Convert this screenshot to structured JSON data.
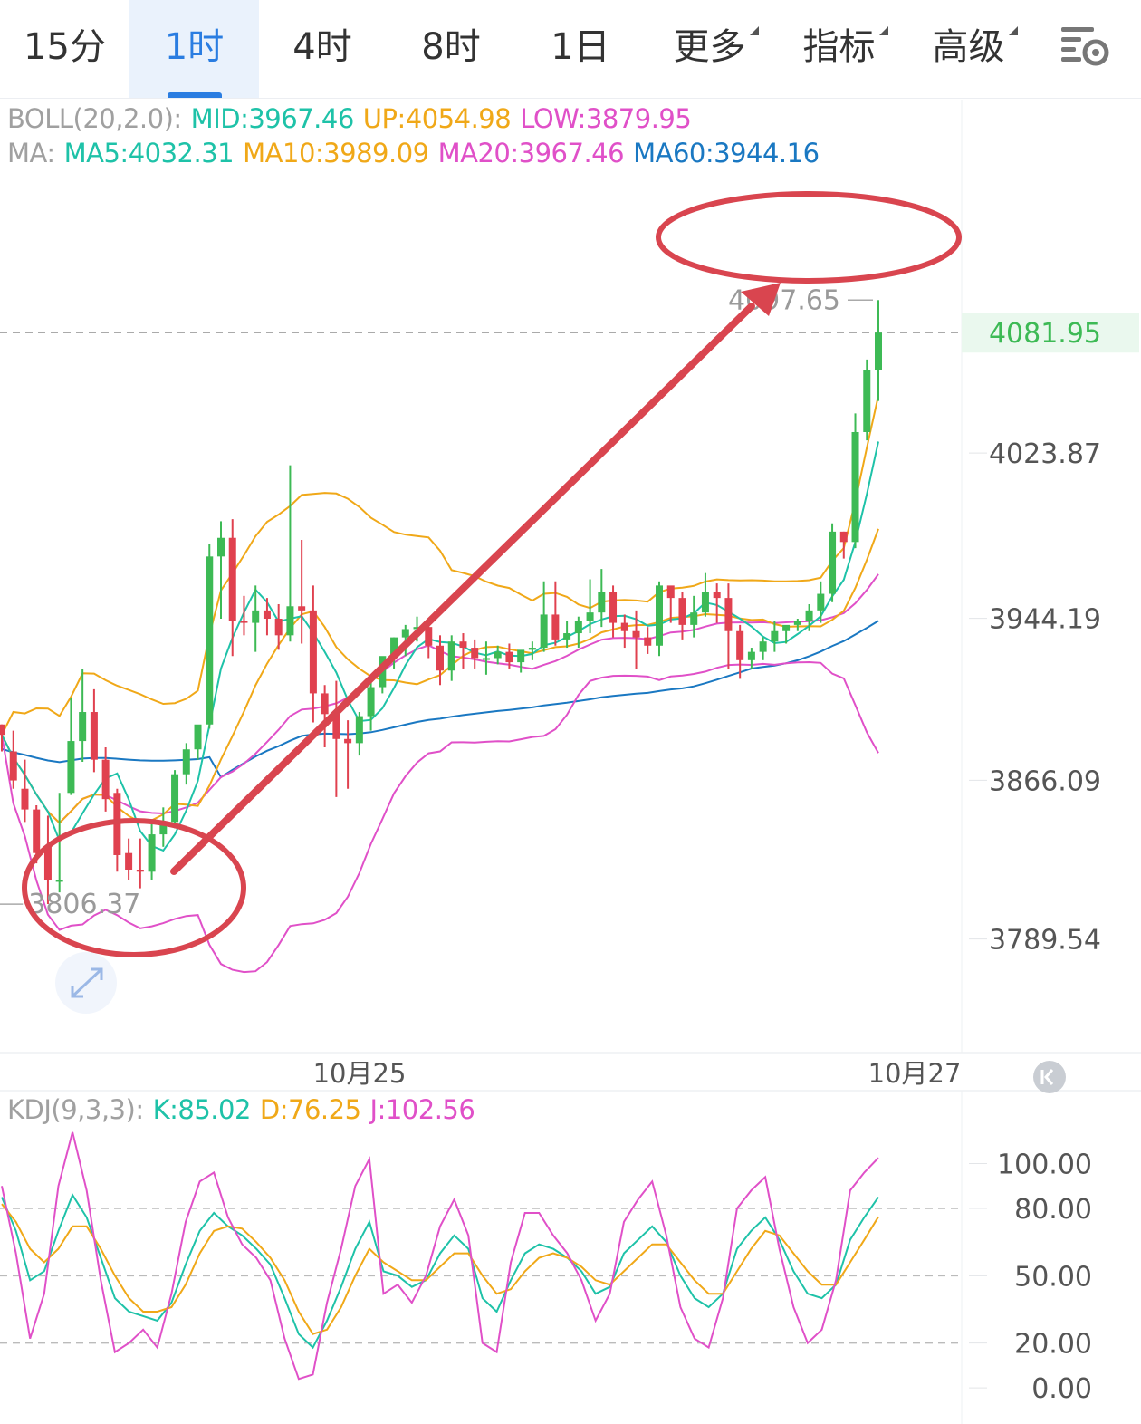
{
  "tabs": [
    {
      "label": "15分",
      "active": false,
      "dropdown": false
    },
    {
      "label": "1时",
      "active": true,
      "dropdown": false
    },
    {
      "label": "4时",
      "active": false,
      "dropdown": false
    },
    {
      "label": "8时",
      "active": false,
      "dropdown": false
    },
    {
      "label": "1日",
      "active": false,
      "dropdown": false
    },
    {
      "label": "更多",
      "active": false,
      "dropdown": true
    },
    {
      "label": "指标",
      "active": false,
      "dropdown": true
    },
    {
      "label": "高级",
      "active": false,
      "dropdown": true
    }
  ],
  "settings_icon": "chart-settings-icon",
  "boll_legend": {
    "label": "BOLL(20,2.0):",
    "mid": "MID:3967.46",
    "up": "UP:4054.98",
    "low": "LOW:3879.95"
  },
  "ma_legend": {
    "label": "MA:",
    "ma5": "MA5:4032.31",
    "ma10": "MA10:3989.09",
    "ma20": "MA20:3967.46",
    "ma60": "MA60:3944.16"
  },
  "kdj_legend": {
    "label": "KDJ(9,3,3):",
    "k": "K:85.02",
    "d": "D:76.25",
    "j": "J:102.56"
  },
  "colors": {
    "up": "#3dba55",
    "down": "#e0414f",
    "ma5": "#1ec2a8",
    "ma10": "#f0a818",
    "boll": "#e050c8",
    "ma60": "#1a78c2",
    "annotation": "#d9454f",
    "accent": "#2a7de1"
  },
  "chart_data": [
    {
      "type": "candlestick",
      "title": "",
      "y_ticks": [
        "4023.87",
        "3944.19",
        "3866.09",
        "3789.54"
      ],
      "y_tick_values": [
        4023.87,
        3944.19,
        3866.09,
        3789.54
      ],
      "x_ticks": [
        "10月25",
        "10月27"
      ],
      "last_price": "4081.95",
      "last_price_value": 4081.95,
      "max_label": "4097.65",
      "max_value": 4097.65,
      "min_label": "3806.37",
      "min_value": 3806.37,
      "ylim": [
        3740,
        4155
      ],
      "candles": [
        [
          3893,
          3893,
          3888,
          3880
        ],
        [
          3880,
          3890,
          3866,
          3862
        ],
        [
          3862,
          3876,
          3852,
          3846
        ],
        [
          3852,
          3854,
          3831,
          3826
        ],
        [
          3834,
          3849,
          3818,
          3806.4
        ],
        [
          3818,
          3860,
          3818,
          3812
        ],
        [
          3860,
          3906,
          3885,
          3859
        ],
        [
          3885,
          3920,
          3899,
          3875
        ],
        [
          3899,
          3910,
          3876,
          3870
        ],
        [
          3876,
          3882,
          3857,
          3851
        ],
        [
          3860,
          3862,
          3830,
          3822
        ],
        [
          3831,
          3838,
          3823,
          3818
        ],
        [
          3823,
          3838,
          3822,
          3814
        ],
        [
          3822,
          3845,
          3840,
          3818
        ],
        [
          3840,
          3853,
          3846,
          3834
        ],
        [
          3846,
          3871,
          3869,
          3843
        ],
        [
          3869,
          3884,
          3881,
          3864
        ],
        [
          3881,
          3886,
          3893,
          3876
        ],
        [
          3893,
          3980,
          3974,
          3891
        ],
        [
          3974,
          3991,
          3983,
          3944
        ],
        [
          3983,
          3992,
          3943,
          3926
        ],
        [
          3943,
          3955,
          3942,
          3936
        ],
        [
          3942,
          3960,
          3948,
          3928
        ],
        [
          3948,
          3954,
          3944,
          3936
        ],
        [
          3944,
          3951,
          3936,
          3929
        ],
        [
          3936,
          4018,
          3950,
          3933
        ],
        [
          3950,
          3982,
          3948,
          3932
        ],
        [
          3948,
          3960,
          3908,
          3894
        ],
        [
          3908,
          3912,
          3898,
          3882
        ],
        [
          3898,
          3914,
          3886,
          3858
        ],
        [
          3886,
          3895,
          3884,
          3862
        ],
        [
          3884,
          3899,
          3897,
          3878
        ],
        [
          3897,
          3916,
          3911,
          3890
        ],
        [
          3911,
          3924,
          3926,
          3908
        ],
        [
          3926,
          3935,
          3935,
          3920
        ],
        [
          3935,
          3941,
          3939,
          3926
        ],
        [
          3939,
          3945,
          3940,
          3933
        ],
        [
          3940,
          3942,
          3931,
          3925
        ],
        [
          3931,
          3936,
          3919,
          3912
        ],
        [
          3919,
          3936,
          3933,
          3914
        ],
        [
          3933,
          3937,
          3930,
          3920
        ],
        [
          3930,
          3934,
          3925,
          3920
        ],
        [
          3925,
          3933,
          3925,
          3917
        ],
        [
          3925,
          3931,
          3928,
          3922
        ],
        [
          3928,
          3932,
          3923,
          3920
        ],
        [
          3923,
          3928,
          3929,
          3918
        ],
        [
          3929,
          3933,
          3930,
          3924
        ],
        [
          3930,
          3962,
          3946,
          3928
        ],
        [
          3946,
          3962,
          3934,
          3931
        ],
        [
          3934,
          3943,
          3937,
          3930
        ],
        [
          3937,
          3945,
          3943,
          3930
        ],
        [
          3943,
          3963,
          3947,
          3937
        ],
        [
          3947,
          3968,
          3957,
          3940
        ],
        [
          3957,
          3960,
          3942,
          3935
        ],
        [
          3942,
          3946,
          3938,
          3930
        ],
        [
          3938,
          3948,
          3935,
          3920
        ],
        [
          3935,
          3940,
          3931,
          3927
        ],
        [
          3931,
          3962,
          3960,
          3926
        ],
        [
          3960,
          3958,
          3954,
          3942
        ],
        [
          3954,
          3957,
          3941,
          3934
        ],
        [
          3941,
          3955,
          3947,
          3935
        ],
        [
          3947,
          3966,
          3957,
          3945
        ],
        [
          3957,
          3961,
          3954,
          3942
        ],
        [
          3954,
          3961,
          3938,
          3920
        ],
        [
          3938,
          3941,
          3924,
          3915
        ],
        [
          3924,
          3930,
          3928,
          3920
        ],
        [
          3928,
          3935,
          3933,
          3924
        ],
        [
          3933,
          3943,
          3938,
          3928
        ],
        [
          3938,
          3940,
          3941,
          3932
        ],
        [
          3941,
          3944,
          3943,
          3938
        ],
        [
          3943,
          3951,
          3948,
          3938
        ],
        [
          3948,
          3962,
          3956,
          3942
        ],
        [
          3956,
          3990,
          3986,
          3952
        ],
        [
          3986,
          3986,
          3981,
          3973
        ],
        [
          3981,
          4043,
          4034,
          3978
        ],
        [
          4034,
          4069,
          4064,
          4030
        ],
        [
          4064,
          4097.65,
          4081.95,
          4049
        ]
      ]
    },
    {
      "type": "line",
      "title": "",
      "y_ticks": [
        "100.00",
        "80.00",
        "50.00",
        "20.00",
        "0.00"
      ],
      "y_tick_values": [
        100,
        80,
        50,
        20,
        0
      ],
      "ylim": [
        -8,
        122
      ],
      "series": [
        {
          "name": "K",
          "values": [
            85,
            70,
            48,
            52,
            70,
            86,
            76,
            58,
            40,
            34,
            32,
            30,
            38,
            55,
            70,
            78,
            72,
            68,
            62,
            55,
            40,
            24,
            18,
            30,
            45,
            62,
            74,
            52,
            50,
            45,
            48,
            60,
            68,
            62,
            40,
            34,
            48,
            60,
            64,
            62,
            58,
            52,
            42,
            45,
            60,
            66,
            72,
            65,
            50,
            40,
            36,
            42,
            62,
            70,
            76,
            66,
            52,
            42,
            40,
            46,
            66,
            76,
            85
          ]
        },
        {
          "name": "D",
          "values": [
            82,
            74,
            62,
            56,
            62,
            72,
            72,
            62,
            50,
            40,
            34,
            34,
            36,
            46,
            60,
            70,
            72,
            71,
            65,
            58,
            48,
            34,
            24,
            26,
            36,
            50,
            62,
            56,
            52,
            48,
            48,
            54,
            60,
            60,
            50,
            42,
            44,
            52,
            58,
            60,
            58,
            54,
            48,
            46,
            52,
            58,
            64,
            64,
            56,
            48,
            42,
            42,
            52,
            62,
            70,
            68,
            60,
            52,
            46,
            46,
            56,
            66,
            76.25
          ]
        },
        {
          "name": "J",
          "values": [
            90,
            60,
            22,
            42,
            90,
            114,
            88,
            48,
            16,
            20,
            26,
            18,
            42,
            74,
            92,
            96,
            76,
            64,
            58,
            48,
            22,
            4,
            6,
            38,
            62,
            90,
            102,
            42,
            46,
            38,
            50,
            72,
            84,
            68,
            20,
            16,
            56,
            78,
            78,
            68,
            60,
            48,
            30,
            42,
            74,
            84,
            92,
            68,
            36,
            22,
            18,
            40,
            80,
            88,
            94,
            62,
            36,
            20,
            26,
            48,
            88,
            96,
            102.56
          ]
        }
      ]
    }
  ],
  "expand_icon": "expand-arrows-icon",
  "back_to_latest_icon": "back-to-latest-icon"
}
